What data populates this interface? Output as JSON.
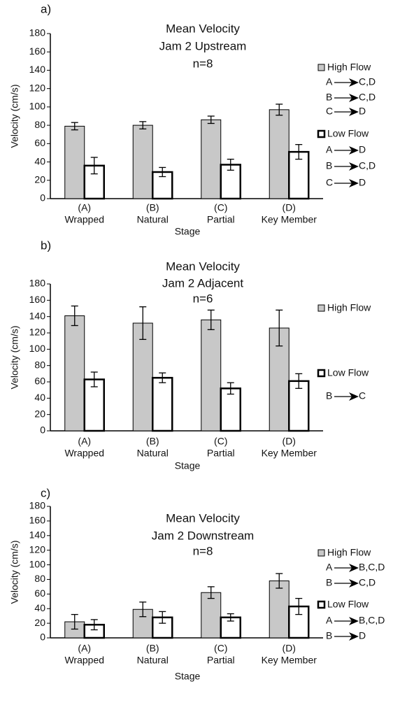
{
  "chart_data": [
    {
      "type": "bar",
      "panel": "a)",
      "title": "Mean Velocity",
      "subtitle": "Jam 2 Upstream",
      "note": "n=8",
      "x_label": "Stage",
      "y_label": "Velocity (cm/s)",
      "categories": [
        "(A)",
        "(B)",
        "(C)",
        "(D)"
      ],
      "category_names": [
        "Wrapped",
        "Natural",
        "Partial",
        "Key Member"
      ],
      "ylim": [
        0,
        180
      ],
      "yticks": [
        0,
        20,
        40,
        60,
        80,
        100,
        120,
        140,
        160,
        180
      ],
      "series": [
        {
          "name": "High Flow",
          "color": "#c8c8c8",
          "values": [
            79,
            80,
            86,
            97
          ],
          "errors": [
            4,
            4,
            4,
            6
          ],
          "annotations": [
            {
              "from": "A",
              "to": "C,D"
            },
            {
              "from": "B",
              "to": "C,D"
            },
            {
              "from": "C",
              "to": "D"
            }
          ]
        },
        {
          "name": "Low Flow",
          "color": "#ffffff",
          "values": [
            36,
            29,
            37,
            51
          ],
          "errors": [
            9,
            5,
            6,
            8
          ],
          "annotations": [
            {
              "from": "A",
              "to": "D"
            },
            {
              "from": "B",
              "to": "C,D"
            },
            {
              "from": "C",
              "to": "D"
            }
          ]
        }
      ]
    },
    {
      "type": "bar",
      "panel": "b)",
      "title": "Mean Velocity",
      "subtitle": "Jam 2 Adjacent",
      "note": "n=6",
      "x_label": "Stage",
      "y_label": "Velocity (cm/s)",
      "categories": [
        "(A)",
        "(B)",
        "(C)",
        "(D)"
      ],
      "category_names": [
        "Wrapped",
        "Natural",
        "Partial",
        "Key Member"
      ],
      "ylim": [
        0,
        180
      ],
      "yticks": [
        0,
        20,
        40,
        60,
        80,
        100,
        120,
        140,
        160,
        180
      ],
      "series": [
        {
          "name": "High Flow",
          "color": "#c8c8c8",
          "values": [
            141,
            132,
            136,
            126
          ],
          "errors": [
            12,
            20,
            12,
            22
          ],
          "annotations": []
        },
        {
          "name": "Low Flow",
          "color": "#ffffff",
          "values": [
            63,
            65,
            52,
            61
          ],
          "errors": [
            9,
            6,
            7,
            9
          ],
          "annotations": [
            {
              "from": "B",
              "to": "C"
            }
          ]
        }
      ]
    },
    {
      "type": "bar",
      "panel": "c)",
      "title": "Mean Velocity",
      "subtitle": "Jam 2 Downstream",
      "note": "n=8",
      "x_label": "Stage",
      "y_label": "Velocity (cm/s)",
      "categories": [
        "(A)",
        "(B)",
        "(C)",
        "(D)"
      ],
      "category_names": [
        "Wrapped",
        "Natural",
        "Partial",
        "Key Member"
      ],
      "ylim": [
        0,
        180
      ],
      "yticks": [
        0,
        20,
        40,
        60,
        80,
        100,
        120,
        140,
        160,
        180
      ],
      "series": [
        {
          "name": "High Flow",
          "color": "#c8c8c8",
          "values": [
            22,
            39,
            62,
            78
          ],
          "errors": [
            10,
            10,
            8,
            10
          ],
          "annotations": [
            {
              "from": "A",
              "to": "B,C,D"
            },
            {
              "from": "B",
              "to": "C,D"
            }
          ]
        },
        {
          "name": "Low Flow",
          "color": "#ffffff",
          "values": [
            18,
            28,
            28,
            43
          ],
          "errors": [
            7,
            8,
            5,
            11
          ],
          "annotations": [
            {
              "from": "A",
              "to": "B,C,D"
            },
            {
              "from": "B",
              "to": "D"
            }
          ]
        }
      ]
    }
  ]
}
